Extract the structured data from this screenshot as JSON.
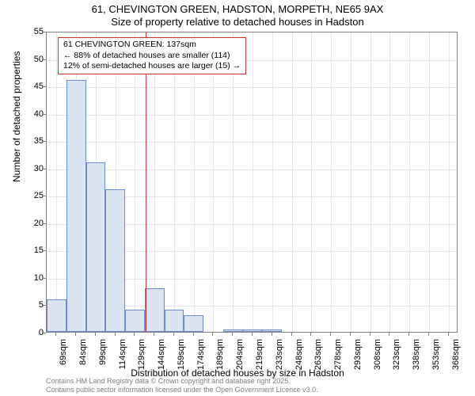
{
  "title_main": "61, CHEVINGTON GREEN, HADSTON, MORPETH, NE65 9AX",
  "title_sub": "Size of property relative to detached houses in Hadston",
  "ylabel": "Number of detached properties",
  "xlabel": "Distribution of detached houses by size in Hadston",
  "footer_line1": "Contains HM Land Registry data © Crown copyright and database right 2025.",
  "footer_line2": "Contains public sector information licensed under the Open Government Licence v3.0.",
  "chart": {
    "type": "histogram",
    "ylim": [
      0,
      55
    ],
    "ytick_step": 5,
    "xticks": [
      "69sqm",
      "84sqm",
      "99sqm",
      "114sqm",
      "129sqm",
      "144sqm",
      "159sqm",
      "174sqm",
      "189sqm",
      "204sqm",
      "219sqm",
      "233sqm",
      "248sqm",
      "263sqm",
      "278sqm",
      "293sqm",
      "308sqm",
      "323sqm",
      "338sqm",
      "353sqm",
      "368sqm"
    ],
    "bar_values": [
      6,
      46,
      31,
      26,
      4,
      8,
      4,
      3,
      0,
      0.5,
      0.5,
      0.5,
      0,
      0,
      0,
      0,
      0,
      0,
      0,
      0,
      0
    ],
    "bar_fill": "#dae4f1",
    "bar_border": "#6a8ccc",
    "grid_color": "#e6e6e6",
    "axis_color": "#808080",
    "background": "#ffffff",
    "marker": {
      "value_sqm": 137,
      "color": "#cc3333"
    },
    "annotation": {
      "line1": "61 CHEVINGTON GREEN: 137sqm",
      "line2": "← 88% of detached houses are smaller (114)",
      "line3": "12% of semi-detached houses are larger (15) →",
      "border_color": "#cc3333"
    }
  },
  "fonts": {
    "title_size": 13,
    "label_size": 12,
    "tick_size": 11,
    "annotation_size": 10.5,
    "footer_size": 9
  }
}
